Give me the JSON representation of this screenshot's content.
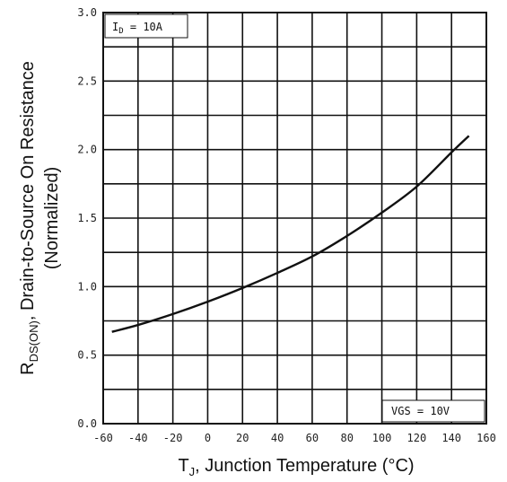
{
  "chart_data": {
    "type": "line",
    "xlabel_main": "T",
    "xlabel_sub": "J",
    "xlabel_rest": ", Junction Temperature (°C)",
    "ylabel_line1_main": "R",
    "ylabel_line1_sub": "DS(ON)",
    "ylabel_line1_rest": ", Drain-to-Source On Resistance",
    "ylabel_line2": "(Normalized)",
    "xlim": [
      -60,
      160
    ],
    "ylim": [
      0.0,
      3.0
    ],
    "x_ticks": [
      -60,
      -40,
      -20,
      0,
      20,
      40,
      60,
      80,
      100,
      120,
      140,
      160
    ],
    "x_tick_labels": [
      "-60",
      "-40",
      "-20",
      "0",
      "20",
      "40",
      "60",
      "80",
      "100",
      "120",
      "140",
      "160"
    ],
    "y_ticks": [
      0.0,
      0.5,
      1.0,
      1.5,
      2.0,
      2.5,
      3.0
    ],
    "y_tick_labels": [
      "0.0",
      "0.5",
      "1.0",
      "1.5",
      "2.0",
      "2.5",
      "3.0"
    ],
    "grid": true,
    "annotations": {
      "id_label_main": "I",
      "id_label_sub": "D",
      "id_label_rest": " = 10A",
      "vgs_label": "VGS = 10V"
    },
    "series": [
      {
        "x": [
          -55,
          -40,
          -20,
          0,
          20,
          40,
          60,
          80,
          100,
          120,
          140,
          150
        ],
        "y": [
          0.67,
          0.72,
          0.8,
          0.89,
          0.99,
          1.1,
          1.22,
          1.37,
          1.54,
          1.73,
          1.98,
          2.1
        ]
      }
    ]
  }
}
